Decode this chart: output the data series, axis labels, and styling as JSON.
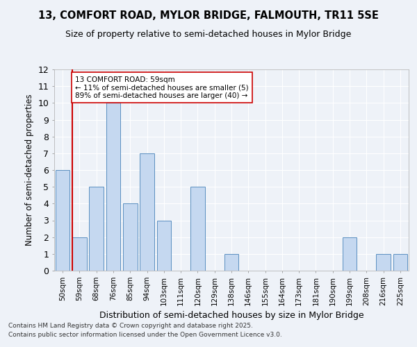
{
  "title1": "13, COMFORT ROAD, MYLOR BRIDGE, FALMOUTH, TR11 5SE",
  "title2": "Size of property relative to semi-detached houses in Mylor Bridge",
  "xlabel": "Distribution of semi-detached houses by size in Mylor Bridge",
  "ylabel": "Number of semi-detached properties",
  "categories": [
    "50sqm",
    "59sqm",
    "68sqm",
    "76sqm",
    "85sqm",
    "94sqm",
    "103sqm",
    "111sqm",
    "120sqm",
    "129sqm",
    "138sqm",
    "146sqm",
    "155sqm",
    "164sqm",
    "173sqm",
    "181sqm",
    "190sqm",
    "199sqm",
    "208sqm",
    "216sqm",
    "225sqm"
  ],
  "values": [
    6,
    2,
    5,
    10,
    4,
    7,
    3,
    0,
    5,
    0,
    1,
    0,
    0,
    0,
    0,
    0,
    0,
    2,
    0,
    1,
    1
  ],
  "bar_color": "#c5d8f0",
  "bar_edge_color": "#5a8fc0",
  "highlight_index": 1,
  "highlight_color_edge": "#cc0000",
  "annotation_text": "13 COMFORT ROAD: 59sqm\n← 11% of semi-detached houses are smaller (5)\n89% of semi-detached houses are larger (40) →",
  "annotation_box_color": "white",
  "annotation_box_edge": "#cc0000",
  "ylim": [
    0,
    12
  ],
  "yticks": [
    0,
    1,
    2,
    3,
    4,
    5,
    6,
    7,
    8,
    9,
    10,
    11,
    12
  ],
  "footer1": "Contains HM Land Registry data © Crown copyright and database right 2025.",
  "footer2": "Contains public sector information licensed under the Open Government Licence v3.0.",
  "bg_color": "#eef2f8",
  "grid_color": "#ffffff"
}
